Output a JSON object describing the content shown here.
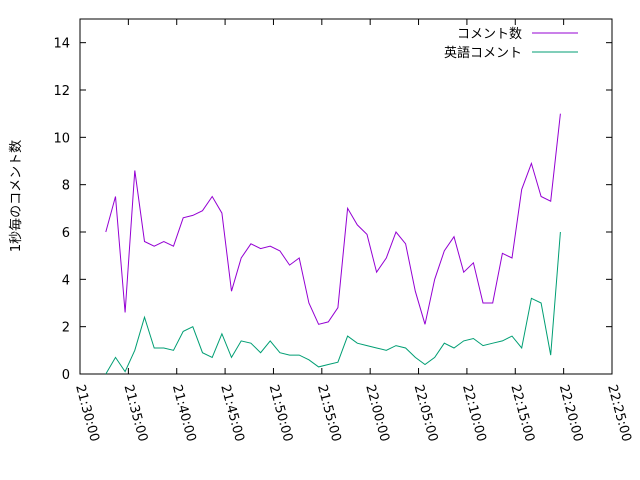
{
  "chart_data": {
    "type": "line",
    "y_label": "1秒毎のコメント数",
    "x": [
      "21:32:40",
      "21:33:40",
      "21:34:40",
      "21:35:40",
      "21:36:40",
      "21:37:40",
      "21:38:40",
      "21:39:40",
      "21:40:40",
      "21:41:40",
      "21:42:40",
      "21:43:40",
      "21:44:40",
      "21:45:40",
      "21:46:40",
      "21:47:40",
      "21:48:40",
      "21:49:40",
      "21:50:40",
      "21:51:40",
      "21:52:40",
      "21:53:40",
      "21:54:40",
      "21:55:40",
      "21:56:40",
      "21:57:40",
      "21:58:40",
      "21:59:40",
      "22:00:40",
      "22:01:40",
      "22:02:40",
      "22:03:40",
      "22:04:40",
      "22:05:40",
      "22:06:40",
      "22:07:40",
      "22:08:40",
      "22:09:40",
      "22:10:40",
      "22:11:40",
      "22:12:40",
      "22:13:40",
      "22:14:40",
      "22:15:40",
      "22:16:40",
      "22:17:40",
      "22:18:40",
      "22:19:40"
    ],
    "series": [
      {
        "name": "コメント数",
        "color": "#9400d3",
        "values": [
          6.0,
          7.5,
          2.6,
          8.6,
          5.6,
          5.4,
          5.6,
          5.4,
          6.6,
          6.7,
          6.9,
          7.5,
          6.8,
          3.5,
          4.9,
          5.5,
          5.3,
          5.4,
          5.2,
          4.6,
          4.9,
          3.0,
          2.1,
          2.2,
          2.8,
          7.0,
          6.3,
          5.9,
          4.3,
          4.9,
          6.0,
          5.5,
          3.5,
          2.1,
          4.0,
          5.2,
          5.8,
          4.3,
          4.7,
          3.0,
          3.0,
          5.1,
          4.9,
          7.8,
          8.9,
          7.5,
          7.3,
          11.0
        ]
      },
      {
        "name": "英語コメント",
        "color": "#009e73",
        "values": [
          0.0,
          0.7,
          0.1,
          1.0,
          2.4,
          1.1,
          1.1,
          1.0,
          1.8,
          2.0,
          0.9,
          0.7,
          1.7,
          0.7,
          1.4,
          1.3,
          0.9,
          1.4,
          0.9,
          0.8,
          0.8,
          0.6,
          0.3,
          0.4,
          0.5,
          1.6,
          1.3,
          1.2,
          1.1,
          1.0,
          1.2,
          1.1,
          0.7,
          0.4,
          0.7,
          1.3,
          1.1,
          1.4,
          1.5,
          1.2,
          1.3,
          1.4,
          1.6,
          1.1,
          3.2,
          3.0,
          0.8,
          6.0
        ]
      }
    ],
    "xlim": [
      "21:30:00",
      "22:25:00"
    ],
    "xticks": [
      "21:30:00",
      "21:35:00",
      "21:40:00",
      "21:45:00",
      "21:50:00",
      "21:55:00",
      "22:00:00",
      "22:05:00",
      "22:10:00",
      "22:15:00",
      "22:20:00",
      "22:25:00"
    ],
    "ylim": [
      0,
      15
    ],
    "yticks": [
      0,
      2,
      4,
      6,
      8,
      10,
      12,
      14
    ],
    "legend": "top-right"
  }
}
